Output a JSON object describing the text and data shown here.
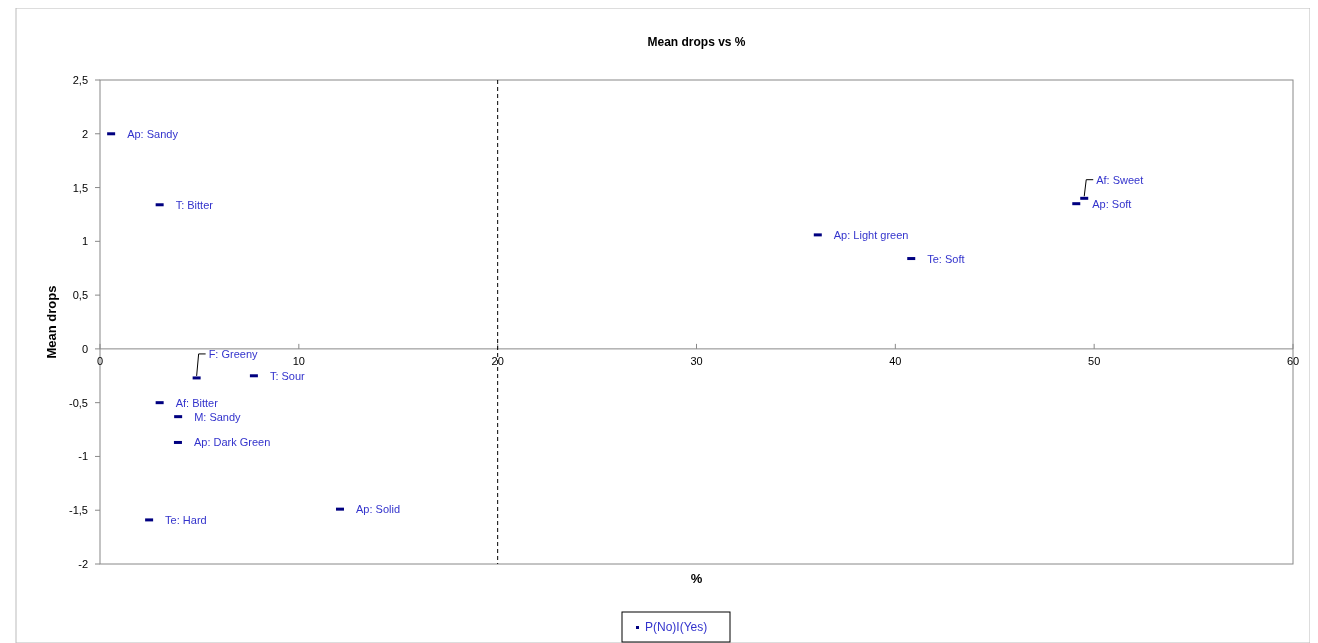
{
  "chart_data": {
    "type": "scatter",
    "title": "Mean drops vs %",
    "xlabel": "%",
    "ylabel": "Mean drops",
    "xlim": [
      0,
      60
    ],
    "xticks": [
      0,
      10,
      20,
      30,
      40,
      50,
      60
    ],
    "ylim": [
      -2,
      2.5
    ],
    "yticks": [
      {
        "value": -2,
        "label": "-2"
      },
      {
        "value": -1.5,
        "label": "-1,5"
      },
      {
        "value": -1,
        "label": "-1"
      },
      {
        "value": -0.5,
        "label": "-0,5"
      },
      {
        "value": 0,
        "label": "0"
      },
      {
        "value": 0.5,
        "label": "0,5"
      },
      {
        "value": 1,
        "label": "1"
      },
      {
        "value": 1.5,
        "label": "1,5"
      },
      {
        "value": 2,
        "label": "2"
      },
      {
        "value": 2.5,
        "label": "2,5"
      }
    ],
    "series": [
      {
        "name": "P(No)I(Yes)",
        "color": "#000080",
        "x": [
          0.56,
          3.0,
          4.86,
          7.74,
          3.0,
          3.93,
          3.92,
          2.47,
          12.07,
          36.1,
          40.8,
          49.1,
          49.5
        ],
        "values": [
          2.0,
          1.34,
          -0.27,
          -0.25,
          -0.5,
          -0.63,
          -0.87,
          -1.59,
          -1.49,
          1.06,
          0.84,
          1.35,
          1.4
        ]
      }
    ],
    "annotations": [
      {
        "text": "Ap: Sandy",
        "x": 0.56,
        "y": 2.0
      },
      {
        "text": "T: Bitter",
        "x": 3.0,
        "y": 1.34
      },
      {
        "text": "F: Greeny",
        "x": 4.86,
        "y": -0.27
      },
      {
        "text": "T: Sour",
        "x": 7.74,
        "y": -0.25
      },
      {
        "text": "Af: Bitter",
        "x": 3.0,
        "y": -0.5
      },
      {
        "text": "M: Sandy",
        "x": 3.93,
        "y": -0.63
      },
      {
        "text": "Ap: Dark Green",
        "x": 3.92,
        "y": -0.87
      },
      {
        "text": "Te: Hard",
        "x": 2.47,
        "y": -1.59
      },
      {
        "text": "Ap: Solid",
        "x": 12.07,
        "y": -1.49
      },
      {
        "text": "Ap: Light green",
        "x": 36.1,
        "y": 1.06
      },
      {
        "text": "Te: Soft",
        "x": 40.8,
        "y": 0.84
      },
      {
        "text": "Ap: Soft",
        "x": 49.1,
        "y": 1.35
      },
      {
        "text": "Af: Sweet",
        "x": 49.5,
        "y": 1.4
      }
    ],
    "ref_lines": [
      {
        "axis": "x",
        "value": 20,
        "line_style": "dashed",
        "color": "#000000"
      }
    ],
    "marker": "square",
    "legend": "bottom",
    "grid": false
  }
}
